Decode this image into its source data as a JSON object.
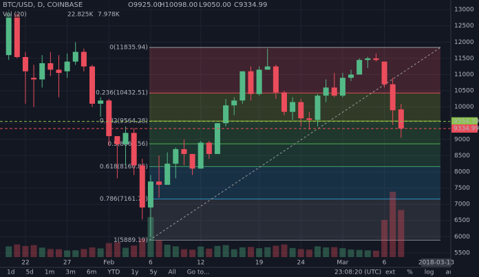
{
  "header": {
    "symbol": "BTC/USD, D, COINBASE",
    "open": "O9925.00",
    "high": "H10098.00",
    "low": "L9050.00",
    "close": "C9334.99",
    "volume_label": "Vol (20)",
    "volume_last": "22.825K",
    "volume_ma": "7.978K"
  },
  "chart_data": {
    "type": "candlestick",
    "categories": [
      null,
      null,
      "22",
      null,
      null,
      null,
      null,
      "27",
      null,
      null,
      null,
      null,
      "Feb",
      null,
      null,
      null,
      null,
      "6",
      null,
      null,
      null,
      null,
      null,
      "12",
      null,
      null,
      null,
      null,
      null,
      null,
      "19",
      null,
      null,
      null,
      null,
      "24",
      null,
      null,
      null,
      null,
      "Mar",
      null,
      null,
      null,
      null,
      "6",
      null,
      null
    ],
    "open": [
      11600,
      12870,
      11540,
      10900,
      10850,
      11350,
      11150,
      11100,
      11400,
      11700,
      11250,
      10100,
      10200,
      9100,
      8850,
      9200,
      8200,
      6900,
      7700,
      7600,
      8250,
      8700,
      8550,
      8100,
      8900,
      8550,
      9500,
      10050,
      10200,
      11100,
      10400,
      11150,
      11250,
      10450,
      9850,
      10150,
      9650,
      9600,
      10350,
      10600,
      10350,
      10900,
      11000,
      11450,
      11500,
      11400,
      10700,
      9925
    ],
    "high": [
      13000,
      12900,
      11700,
      11300,
      11600,
      11700,
      11600,
      11650,
      12000,
      11800,
      11300,
      10300,
      10250,
      9100,
      9400,
      9350,
      8400,
      7900,
      8500,
      8600,
      8750,
      9000,
      8550,
      8950,
      8950,
      9500,
      10250,
      10300,
      11100,
      11250,
      11250,
      11800,
      11300,
      10500,
      10300,
      10250,
      9850,
      10400,
      10850,
      11050,
      11050,
      11150,
      11500,
      11550,
      11650,
      11400,
      10900,
      10098
    ],
    "low": [
      11450,
      11500,
      10100,
      10000,
      10600,
      10950,
      10300,
      10900,
      11300,
      11100,
      10000,
      9700,
      8800,
      7800,
      8200,
      7900,
      6530,
      6000,
      7200,
      7600,
      7800,
      8200,
      7900,
      8100,
      8400,
      8550,
      9400,
      9750,
      10100,
      10200,
      10350,
      11150,
      10250,
      9750,
      9600,
      9400,
      9300,
      9400,
      10150,
      10300,
      10300,
      10800,
      11000,
      11200,
      11400,
      10600,
      9450,
      9050
    ],
    "close": [
      12870,
      11540,
      11100,
      10850,
      11350,
      11150,
      11050,
      11400,
      11700,
      11250,
      10100,
      10200,
      9100,
      8850,
      9200,
      8200,
      6900,
      7700,
      7600,
      8250,
      8700,
      8550,
      8100,
      8900,
      8550,
      9500,
      10050,
      10200,
      11100,
      10400,
      11150,
      11250,
      10450,
      9850,
      10150,
      9650,
      9600,
      10350,
      10600,
      10350,
      10900,
      11000,
      11450,
      11500,
      11450,
      10700,
      9900,
      9334.99
    ],
    "volume": [
      5200,
      6100,
      5400,
      5800,
      4600,
      3900,
      3800,
      3200,
      3300,
      3900,
      4700,
      4200,
      6800,
      7200,
      4500,
      5600,
      8800,
      19400,
      8200,
      6000,
      5200,
      3800,
      3600,
      5100,
      4100,
      5400,
      5800,
      3800,
      4700,
      4900,
      4300,
      4800,
      5500,
      6100,
      4400,
      3900,
      3600,
      5200,
      4700,
      4800,
      4300,
      3700,
      3500,
      3300,
      3100,
      18000,
      31700,
      22825
    ],
    "up_color": "#53b987",
    "down_color": "#eb4d5c",
    "ylim": [
      5370,
      13300
    ],
    "yticks": [
      5500,
      6000,
      6500,
      7000,
      7500,
      8000,
      8500,
      9000,
      9500,
      10000,
      10500,
      11000,
      11500,
      12000,
      12500,
      13000
    ],
    "grid": true,
    "fib_levels": [
      {
        "value": 11835.94,
        "label": "0(11835.94)",
        "color": "#9e9e9e"
      },
      {
        "value": 10432.51,
        "label": "0.236(10432.51)",
        "color": "#e0505a"
      },
      {
        "value": 9564.28,
        "label": "0.382(9564.28)",
        "color": "#9bbc3c"
      },
      {
        "value": 8862.56,
        "label": "0.5(8862.56)",
        "color": "#4caf50"
      },
      {
        "value": 8160.86,
        "label": "0.618(8160.86)",
        "color": "#3fa36b"
      },
      {
        "value": 7161.79,
        "label": "0.786(7161.79)",
        "color": "#2c8fbf"
      },
      {
        "value": 5889.19,
        "label": "1(5889.19)",
        "color": "#787b86"
      }
    ],
    "price_lines": [
      {
        "value": 9554.39,
        "color": "#8bc34a"
      },
      {
        "value": 9334.99,
        "color": "#eb4d5c"
      }
    ],
    "cursor_date": "2018-03-13"
  },
  "toolbar": {
    "ranges": [
      "1d",
      "5d",
      "1m",
      "3m",
      "6m",
      "YTD",
      "1y",
      "5y",
      "All",
      "Go to..."
    ],
    "time": "23:08:20 (UTC)",
    "options": [
      "ext",
      "%",
      "log",
      "auto"
    ]
  }
}
